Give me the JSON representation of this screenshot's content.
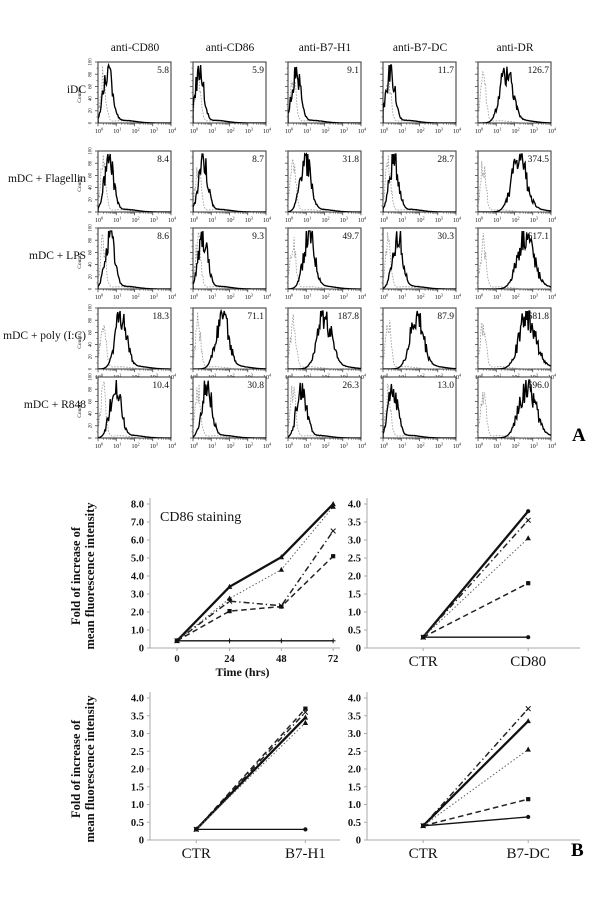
{
  "figure": {
    "panel_a_label": "A",
    "panel_b_label": "B"
  },
  "panel_a": {
    "columns": [
      "anti-CD80",
      "anti-CD86",
      "anti-B7-H1",
      "anti-B7-DC",
      "anti-DR"
    ],
    "rows": [
      "iDC",
      "mDC + Flagellin",
      "mDC + LPS",
      "mDC + poly (I:C)",
      "mDC + R848"
    ],
    "mfi_values": [
      [
        "5.8",
        "5.9",
        "9.1",
        "11.7",
        "126.7"
      ],
      [
        "8.4",
        "8.7",
        "31.8",
        "28.7",
        "374.5"
      ],
      [
        "8.6",
        "9.3",
        "49.7",
        "30.3",
        "617.1"
      ],
      [
        "18.3",
        "71.1",
        "187.8",
        "87.9",
        "681.8"
      ],
      [
        "10.4",
        "30.8",
        "26.3",
        "13.0",
        "696.0"
      ]
    ],
    "y_axis_label": "Counts",
    "y_ticks": [
      "0",
      "20",
      "40",
      "60",
      "80",
      "100"
    ],
    "x_axis_base": "10",
    "x_axis_exponents": [
      "0",
      "1",
      "2",
      "3",
      "4"
    ],
    "sample_peaks_log": [
      [
        0.55,
        0.35,
        0.45,
        0.4,
        1.55
      ],
      [
        0.6,
        0.55,
        0.95,
        0.6,
        2.25
      ],
      [
        0.65,
        0.55,
        1.15,
        0.8,
        2.6
      ],
      [
        1.25,
        1.6,
        2.0,
        1.85,
        2.7
      ],
      [
        0.95,
        0.75,
        0.75,
        0.55,
        2.7
      ]
    ],
    "control_peak_log": 0.28,
    "colors": {
      "sample_curve": "#000000",
      "control_curve": "#999999"
    }
  },
  "chart_data": [
    {
      "type": "line",
      "title": "CD86 staining",
      "xlabel": "Time (hrs)",
      "ylabel_lines": [
        "Fold of increase of",
        "mean fluorescence intensity"
      ],
      "x": [
        0,
        24,
        48,
        72
      ],
      "x_tick_labels": [
        "0",
        "24",
        "48",
        "72"
      ],
      "ylim": [
        0,
        8
      ],
      "yticks": [
        "0",
        "1.0",
        "2.0",
        "3.0",
        "4.0",
        "5.0",
        "6.0",
        "7.0",
        "8.0"
      ],
      "series": [
        {
          "name": "bold-solid",
          "style": "solid-bold",
          "marker": "triangle",
          "values": [
            0.4,
            3.4,
            5.05,
            8.0
          ]
        },
        {
          "name": "dotted",
          "style": "dotted",
          "marker": "triangle",
          "values": [
            0.4,
            2.75,
            4.35,
            7.85
          ]
        },
        {
          "name": "dash-dot",
          "style": "dashdot",
          "marker": "x",
          "values": [
            0.4,
            2.6,
            2.35,
            6.5
          ]
        },
        {
          "name": "dashed",
          "style": "dashed",
          "marker": "square",
          "values": [
            0.4,
            2.05,
            2.3,
            5.1
          ]
        },
        {
          "name": "control",
          "style": "solid-thin",
          "marker": "plus",
          "values": [
            0.4,
            0.4,
            0.4,
            0.4
          ]
        }
      ]
    },
    {
      "type": "line",
      "title": "",
      "categories": [
        "CTR",
        "CD80"
      ],
      "ylim": [
        0,
        4
      ],
      "yticks": [
        "0",
        "0.5",
        "1.0",
        "1.5",
        "2.0",
        "2.5",
        "3.0",
        "3.5",
        "4.0"
      ],
      "series": [
        {
          "name": "bold-solid",
          "style": "solid-bold",
          "marker": "circle",
          "values": [
            0.3,
            3.8
          ]
        },
        {
          "name": "dash-dot",
          "style": "dashdot",
          "marker": "x",
          "values": [
            0.3,
            3.55
          ]
        },
        {
          "name": "dotted",
          "style": "dotted",
          "marker": "triangle",
          "values": [
            0.3,
            3.05
          ]
        },
        {
          "name": "dashed",
          "style": "dashed",
          "marker": "square",
          "values": [
            0.3,
            1.8
          ]
        },
        {
          "name": "control",
          "style": "solid-thin",
          "marker": "circle",
          "values": [
            0.3,
            0.3
          ]
        }
      ]
    },
    {
      "type": "line",
      "title": "",
      "categories": [
        "CTR",
        "B7-H1"
      ],
      "ylabel_lines": [
        "Fold of increase of",
        "mean fluorescence intensity"
      ],
      "ylim": [
        0,
        4
      ],
      "yticks": [
        "0",
        "0.5",
        "1.0",
        "1.5",
        "2.0",
        "2.5",
        "3.0",
        "3.5",
        "4.0"
      ],
      "series": [
        {
          "name": "dashed",
          "style": "dashed",
          "marker": "square",
          "values": [
            0.3,
            3.7
          ]
        },
        {
          "name": "dash-dot",
          "style": "dashdot",
          "marker": "x",
          "values": [
            0.3,
            3.6
          ]
        },
        {
          "name": "bold-solid",
          "style": "solid-bold",
          "marker": "triangle",
          "values": [
            0.3,
            3.45
          ]
        },
        {
          "name": "dotted",
          "style": "dotted",
          "marker": "triangle",
          "values": [
            0.3,
            3.3
          ]
        },
        {
          "name": "control",
          "style": "solid-thin",
          "marker": "circle",
          "values": [
            0.3,
            0.3
          ]
        }
      ]
    },
    {
      "type": "line",
      "title": "",
      "categories": [
        "CTR",
        "B7-DC"
      ],
      "ylim": [
        0,
        4
      ],
      "yticks": [
        "0",
        "0.5",
        "1.0",
        "1.5",
        "2.0",
        "2.5",
        "3.0",
        "3.5",
        "4.0"
      ],
      "series": [
        {
          "name": "dash-dot",
          "style": "dashdot",
          "marker": "x",
          "values": [
            0.4,
            3.7
          ]
        },
        {
          "name": "bold-solid",
          "style": "solid-bold",
          "marker": "triangle",
          "values": [
            0.4,
            3.35
          ]
        },
        {
          "name": "dotted",
          "style": "dotted",
          "marker": "triangle",
          "values": [
            0.4,
            2.55
          ]
        },
        {
          "name": "dashed",
          "style": "dashed",
          "marker": "square",
          "values": [
            0.4,
            1.15
          ]
        },
        {
          "name": "low-solid",
          "style": "solid-thin",
          "marker": "circle",
          "values": [
            0.4,
            0.65
          ]
        }
      ]
    }
  ]
}
